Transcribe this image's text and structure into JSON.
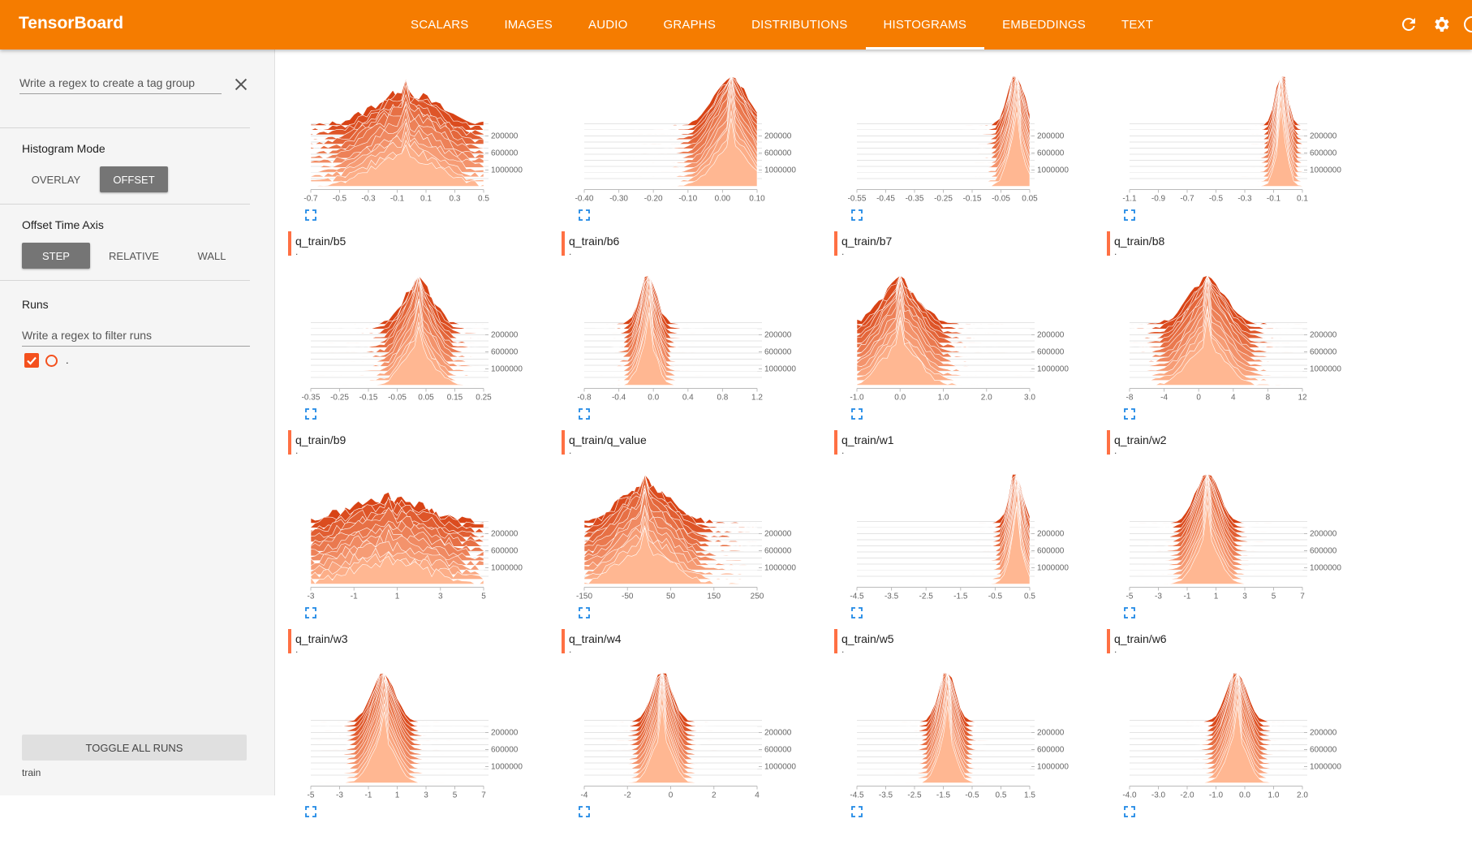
{
  "app": {
    "title": "TensorBoard"
  },
  "nav": {
    "tabs": [
      "SCALARS",
      "IMAGES",
      "AUDIO",
      "GRAPHS",
      "DISTRIBUTIONS",
      "HISTOGRAMS",
      "EMBEDDINGS",
      "TEXT"
    ],
    "active": "HISTOGRAMS"
  },
  "header": {
    "icons": [
      "refresh-icon",
      "settings-icon",
      "help-icon"
    ]
  },
  "sidebar": {
    "tag_regex_placeholder": "Write a regex to create a tag group",
    "histogram_mode": {
      "title": "Histogram Mode",
      "options": [
        "OVERLAY",
        "OFFSET"
      ],
      "selected": "OFFSET"
    },
    "offset_time_axis": {
      "title": "Offset Time Axis",
      "options": [
        "STEP",
        "RELATIVE",
        "WALL"
      ],
      "selected": "STEP"
    },
    "runs": {
      "title": "Runs",
      "filter_placeholder": "Write a regex to filter runs",
      "items": [
        {
          "name": ".",
          "checked": true,
          "color": "#f4511e"
        }
      ]
    },
    "toggle_all_label": "TOGGLE ALL RUNS",
    "run_dir": "train"
  },
  "colors": {
    "accent": "#f57c00",
    "histogram_base": "#f4511e"
  },
  "cards": [
    {
      "tag": "q_train/b5",
      "run": ".",
      "x_ticks": [
        "-0.7",
        "-0.5",
        "-0.3",
        "-0.1",
        "0.1",
        "0.3",
        "0.5"
      ],
      "y_ticks": [
        "200000",
        "600000",
        "1000000"
      ]
    },
    {
      "tag": "q_train/b6",
      "run": ".",
      "x_ticks": [
        "-0.40",
        "-0.30",
        "-0.20",
        "-0.10",
        "0.00",
        "0.10"
      ],
      "y_ticks": [
        "200000",
        "600000",
        "1000000"
      ]
    },
    {
      "tag": "q_train/b7",
      "run": ".",
      "x_ticks": [
        "-0.55",
        "-0.45",
        "-0.35",
        "-0.25",
        "-0.15",
        "-0.05",
        "0.05"
      ],
      "y_ticks": [
        "200000",
        "600000",
        "1000000"
      ]
    },
    {
      "tag": "q_train/b8",
      "run": ".",
      "x_ticks": [
        "-1.1",
        "-0.9",
        "-0.7",
        "-0.5",
        "-0.3",
        "-0.1",
        "0.1"
      ],
      "y_ticks": [
        "200000",
        "600000",
        "1000000"
      ]
    },
    {
      "tag": "q_train/b9",
      "run": ".",
      "x_ticks": [
        "-0.35",
        "-0.25",
        "-0.15",
        "-0.05",
        "0.05",
        "0.15",
        "0.25"
      ],
      "y_ticks": [
        "200000",
        "600000",
        "1000000"
      ]
    },
    {
      "tag": "q_train/q_value",
      "run": ".",
      "x_ticks": [
        "-0.8",
        "-0.4",
        "0.0",
        "0.4",
        "0.8",
        "1.2"
      ],
      "y_ticks": [
        "200000",
        "600000",
        "1000000"
      ]
    },
    {
      "tag": "q_train/w1",
      "run": ".",
      "x_ticks": [
        "-1.0",
        "0.0",
        "1.0",
        "2.0",
        "3.0"
      ],
      "y_ticks": [
        "200000",
        "600000",
        "1000000"
      ]
    },
    {
      "tag": "q_train/w2",
      "run": ".",
      "x_ticks": [
        "-8",
        "-4",
        "0",
        "4",
        "8",
        "12"
      ],
      "y_ticks": [
        "200000",
        "600000",
        "1000000"
      ]
    },
    {
      "tag": "q_train/w3",
      "run": ".",
      "x_ticks": [
        "-3",
        "-1",
        "1",
        "3",
        "5"
      ],
      "y_ticks": [
        "200000",
        "600000",
        "1000000"
      ]
    },
    {
      "tag": "q_train/w4",
      "run": ".",
      "x_ticks": [
        "-150",
        "-50",
        "50",
        "150",
        "250"
      ],
      "y_ticks": [
        "200000",
        "600000",
        "1000000"
      ]
    },
    {
      "tag": "q_train/w5",
      "run": ".",
      "x_ticks": [
        "-4.5",
        "-3.5",
        "-2.5",
        "-1.5",
        "-0.5",
        "0.5"
      ],
      "y_ticks": [
        "200000",
        "600000",
        "1000000"
      ]
    },
    {
      "tag": "q_train/w6",
      "run": ".",
      "x_ticks": [
        "-5",
        "-3",
        "-1",
        "1",
        "3",
        "5",
        "7"
      ],
      "y_ticks": [
        "200000",
        "600000",
        "1000000"
      ]
    },
    {
      "tag": "",
      "run": "",
      "x_ticks": [
        "-5",
        "-3",
        "-1",
        "1",
        "3",
        "5",
        "7"
      ],
      "y_ticks": [
        "200000",
        "600000",
        "1000000"
      ]
    },
    {
      "tag": "",
      "run": "",
      "x_ticks": [
        "-4",
        "-2",
        "0",
        "2",
        "4"
      ],
      "y_ticks": [
        "200000",
        "600000",
        "1000000"
      ]
    },
    {
      "tag": "",
      "run": "",
      "x_ticks": [
        "-4.5",
        "-3.5",
        "-2.5",
        "-1.5",
        "-0.5",
        "0.5",
        "1.5"
      ],
      "y_ticks": [
        "200000",
        "600000",
        "1000000"
      ]
    },
    {
      "tag": "",
      "run": "",
      "x_ticks": [
        "-4.0",
        "-3.0",
        "-2.0",
        "-1.0",
        "0.0",
        "1.0",
        "2.0"
      ],
      "y_ticks": [
        "200000",
        "600000",
        "1000000"
      ]
    }
  ]
}
